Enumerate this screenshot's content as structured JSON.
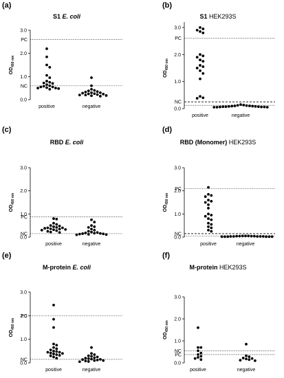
{
  "chart_data": [
    {
      "type": "scatter",
      "panel_label": "(a)",
      "title_main": "S1",
      "title_sub": "E. coli",
      "title_sub_style": "italic",
      "ylabel": "OD",
      "ylabel_sub": "450 nm",
      "ylim": [
        0,
        3.0
      ],
      "yticks": [
        "0.0",
        "1.0",
        "2.0",
        "3.0"
      ],
      "categories": [
        "positive",
        "negative"
      ],
      "reference_lines": [
        {
          "label": "PC",
          "value": 2.6,
          "style": "dotted"
        },
        {
          "label": "NC",
          "value": 0.6,
          "style": "dotted"
        }
      ],
      "series": [
        {
          "values": [
            2.2,
            1.85,
            1.5,
            1.4,
            1.05,
            0.95,
            0.8,
            0.75,
            0.72,
            0.7,
            0.65,
            0.6,
            0.58,
            0.55,
            0.55,
            0.52,
            0.5,
            0.5,
            0.48,
            0.45
          ]
        },
        {
          "values": [
            0.95,
            0.6,
            0.45,
            0.4,
            0.38,
            0.35,
            0.33,
            0.3,
            0.3,
            0.28,
            0.26,
            0.25,
            0.24,
            0.22,
            0.2,
            0.2,
            0.18,
            0.17,
            0.15
          ]
        }
      ]
    },
    {
      "type": "scatter",
      "panel_label": "(b)",
      "title_main": "S1",
      "title_sub": "HEK293S",
      "title_sub_style": "normal",
      "ylabel": "OD",
      "ylabel_sub": "450 nm",
      "ylim": [
        0,
        3.2
      ],
      "yticks": [
        "0.0",
        "1.0",
        "2.0",
        "3.0"
      ],
      "categories": [
        "positive",
        "negative"
      ],
      "reference_lines": [
        {
          "label": "PC",
          "value": 2.6,
          "style": "dotted"
        },
        {
          "label": "NC",
          "value": 0.25,
          "style": "dashed"
        },
        {
          "label": "",
          "value": 0.12,
          "style": "dotted"
        }
      ],
      "series": [
        {
          "values": [
            3.0,
            2.95,
            2.9,
            2.85,
            2.8,
            2.0,
            1.95,
            1.9,
            1.8,
            1.75,
            1.6,
            1.55,
            1.5,
            1.4,
            1.3,
            1.1,
            0.45,
            0.4,
            0.38
          ]
        },
        {
          "values": [
            0.15,
            0.13,
            0.12,
            0.11,
            0.1,
            0.1,
            0.09,
            0.09,
            0.08,
            0.08,
            0.07,
            0.07,
            0.07,
            0.06,
            0.06,
            0.06,
            0.05,
            0.05,
            0.05
          ]
        }
      ]
    },
    {
      "type": "scatter",
      "panel_label": "(c)",
      "title_main": "RBD",
      "title_sub": "E. coli",
      "title_sub_style": "italic",
      "ylabel": "OD",
      "ylabel_sub": "450 nm",
      "ylim": [
        0,
        3.0
      ],
      "yticks": [
        "0.0",
        "1.0",
        "2.0",
        "3.0"
      ],
      "categories": [
        "positive",
        "negative"
      ],
      "reference_lines": [
        {
          "label": "PC",
          "value": 0.88,
          "style": "dotted"
        },
        {
          "label": "NC",
          "value": 0.15,
          "style": "dotted"
        }
      ],
      "series": [
        {
          "values": [
            0.8,
            0.78,
            0.6,
            0.55,
            0.5,
            0.48,
            0.45,
            0.42,
            0.4,
            0.4,
            0.38,
            0.36,
            0.35,
            0.33,
            0.32,
            0.3,
            0.28,
            0.25,
            0.22,
            0.2
          ]
        },
        {
          "values": [
            0.75,
            0.65,
            0.5,
            0.45,
            0.42,
            0.35,
            0.3,
            0.25,
            0.22,
            0.2,
            0.18,
            0.17,
            0.16,
            0.15,
            0.14,
            0.13,
            0.12,
            0.11,
            0.1
          ]
        }
      ]
    },
    {
      "type": "scatter",
      "panel_label": "(d)",
      "title_main": "RBD (Monomer)",
      "title_sub": "HEK293S",
      "title_sub_style": "normal",
      "ylabel": "OD",
      "ylabel_sub": "450 nm",
      "ylim": [
        0,
        3.0
      ],
      "yticks": [
        "0.0",
        "1.0",
        "2.0",
        "3.0"
      ],
      "categories": [
        "positive",
        "negative"
      ],
      "reference_lines": [
        {
          "label": "PC",
          "value": 2.1,
          "style": "dotted"
        },
        {
          "label": "NC",
          "value": 0.15,
          "style": "dashed"
        },
        {
          "label": "",
          "value": 0.05,
          "style": "dotted"
        }
      ],
      "series": [
        {
          "values": [
            2.15,
            1.85,
            1.8,
            1.75,
            1.6,
            1.55,
            1.5,
            1.4,
            1.25,
            1.0,
            0.95,
            0.9,
            0.8,
            0.75,
            0.6,
            0.55,
            0.45,
            0.4,
            0.3,
            0.25
          ]
        },
        {
          "values": [
            0.05,
            0.05,
            0.05,
            0.04,
            0.04,
            0.04,
            0.04,
            0.03,
            0.03,
            0.03,
            0.03,
            0.03,
            0.02,
            0.02,
            0.02,
            0.02,
            0.02,
            0.02
          ]
        }
      ]
    },
    {
      "type": "scatter",
      "panel_label": "(e)",
      "title_main": "M-protein",
      "title_sub": "E. coli",
      "title_sub_style": "italic",
      "ylabel": "OD",
      "ylabel_sub": "450 nm",
      "ylim": [
        0,
        3.0
      ],
      "yticks": [
        "0.0",
        "1.0",
        "2.0",
        "3.0"
      ],
      "categories": [
        "positive",
        "negative"
      ],
      "reference_lines": [
        {
          "label": "PC",
          "value": 2.0,
          "style": "dotted"
        },
        {
          "label": "NC",
          "value": 0.15,
          "style": "dotted"
        }
      ],
      "series": [
        {
          "values": [
            2.45,
            1.85,
            1.5,
            0.8,
            0.75,
            0.65,
            0.6,
            0.55,
            0.5,
            0.48,
            0.45,
            0.45,
            0.42,
            0.4,
            0.38,
            0.35,
            0.32,
            0.3,
            0.25,
            0.2
          ]
        },
        {
          "values": [
            0.65,
            0.4,
            0.35,
            0.3,
            0.28,
            0.25,
            0.22,
            0.2,
            0.18,
            0.16,
            0.15,
            0.14,
            0.12,
            0.1,
            0.1,
            0.08,
            0.06,
            0.05
          ]
        }
      ]
    },
    {
      "type": "scatter",
      "panel_label": "(f)",
      "title_main": "M-protein",
      "title_sub": "HEK293S",
      "title_sub_style": "normal",
      "ylabel": "OD",
      "ylabel_sub": "450 nm",
      "ylim": [
        0,
        3.0
      ],
      "yticks": [
        "0.0",
        "1.0",
        "2.0",
        "3.0"
      ],
      "categories": [
        "positive",
        "negative"
      ],
      "reference_lines": [
        {
          "label": "NC",
          "value": 0.55,
          "style": "dotted"
        },
        {
          "label": "PC",
          "value": 0.38,
          "style": "dotted"
        }
      ],
      "series": [
        {
          "values": [
            1.6,
            0.7,
            0.7,
            0.55,
            0.45,
            0.38,
            0.3,
            0.25,
            0.2,
            0.15
          ]
        },
        {
          "values": [
            0.85,
            0.32,
            0.28,
            0.22,
            0.2,
            0.18,
            0.15,
            0.12,
            0.1
          ]
        }
      ]
    }
  ]
}
